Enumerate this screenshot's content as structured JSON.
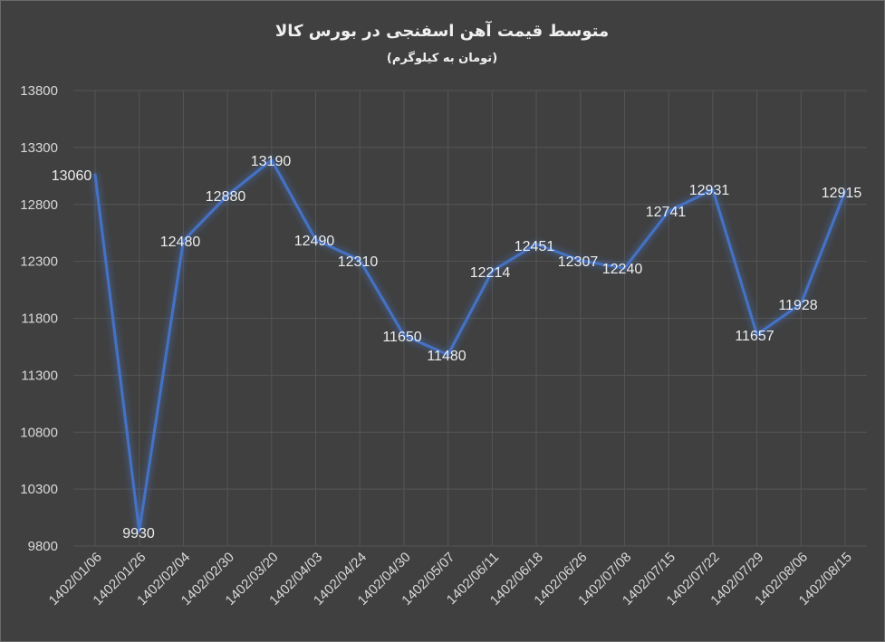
{
  "chart_data": {
    "type": "line",
    "title": "متوسط قیمت آهن اسفنجی در بورس کالا",
    "subtitle": "(تومان به کیلوگرم)",
    "categories": [
      "1402/01/06",
      "1402/01/26",
      "1402/02/04",
      "1402/02/30",
      "1402/03/20",
      "1402/04/03",
      "1402/04/24",
      "1402/04/30",
      "1402/05/07",
      "1402/06/11",
      "1402/06/18",
      "1402/06/26",
      "1402/07/08",
      "1402/07/15",
      "1402/07/22",
      "1402/07/29",
      "1402/08/06",
      "1402/08/15"
    ],
    "values": [
      13060,
      9930,
      12480,
      12880,
      13190,
      12490,
      12310,
      11650,
      11480,
      12214,
      12451,
      12307,
      12240,
      12741,
      12931,
      11657,
      11928,
      12915
    ],
    "data_labels": [
      "13060",
      "9930",
      "12480",
      "12880",
      "13190",
      "12490",
      "12310",
      "11650",
      "11480",
      "12214",
      "12451",
      "12307",
      "12240",
      "12741",
      "12931",
      "11657",
      "11928",
      "12915"
    ],
    "yticks": [
      "13800",
      "13300",
      "12800",
      "12300",
      "11800",
      "11300",
      "10800",
      "10300",
      "9800"
    ],
    "ylim": [
      9800,
      13800
    ],
    "grid": true,
    "line_color": "#4472c4",
    "background_color": "#404040"
  }
}
